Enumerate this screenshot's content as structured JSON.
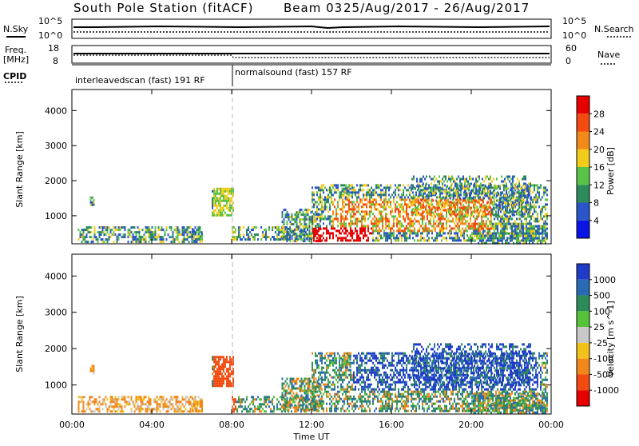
{
  "header": {
    "title": "South Pole Station (fitACF)",
    "beam": "Beam 03",
    "dates": "25/Aug/2017 - 26/Aug/2017"
  },
  "noise_panel": {
    "left_label": "N.Sky",
    "right_label": "N.Search",
    "left_ticks": [
      "10^5",
      "10^0"
    ],
    "right_ticks": [
      "10^5",
      "10^0"
    ]
  },
  "freq_panel": {
    "left_label_line1": "Freq.",
    "left_label_line2": "[MHz]",
    "left_ticks": [
      "18",
      "8"
    ],
    "right_label": "Nave",
    "right_ticks": [
      "60",
      "0"
    ]
  },
  "cpid_panel": {
    "label": "CPID",
    "segment1": "interleavedscan (fast) 191 RF",
    "segment2": "normalsound (fast) 157 RF"
  },
  "x_axis": {
    "label": "Time UT",
    "ticks": [
      "00:00",
      "04:00",
      "08:00",
      "12:00",
      "16:00",
      "20:00",
      "00:00"
    ],
    "tick_hours": [
      0,
      4,
      8,
      12,
      16,
      20,
      24
    ]
  },
  "chart_data": [
    {
      "type": "heatmap",
      "name": "power",
      "ylabel": "Slant Range [km]",
      "yticks": [
        1000,
        2000,
        3000,
        4000
      ],
      "ylim": [
        200,
        4600
      ],
      "xlim_hours": [
        0,
        24
      ],
      "colorbar_label": "Power [dB]",
      "colorbar_ticks": [
        "4",
        "8",
        "12",
        "16",
        "20",
        "24",
        "28"
      ],
      "colors": [
        "#0a14e6",
        "#2a55c8",
        "#2e8a5a",
        "#59c24a",
        "#f2cc1a",
        "#f28a1a",
        "#f24a10",
        "#e60000"
      ],
      "cpid_switch_hour": 7.9
    },
    {
      "type": "heatmap",
      "name": "velocity",
      "ylabel": "Slant Range [km]",
      "yticks": [
        1000,
        2000,
        3000,
        4000
      ],
      "ylim": [
        200,
        4600
      ],
      "xlim_hours": [
        0,
        24
      ],
      "colorbar_label": "Velocity [m s^-1]",
      "colorbar_ticks": [
        "1000",
        "500",
        "100",
        "25",
        "-25",
        "-100",
        "-500",
        "-1000"
      ],
      "colors": [
        "#1f3cc8",
        "#2a6ab4",
        "#2f8a5a",
        "#56c23a",
        "#c8c8c8",
        "#f2c21a",
        "#f2871a",
        "#f24a10",
        "#e60000"
      ]
    }
  ]
}
